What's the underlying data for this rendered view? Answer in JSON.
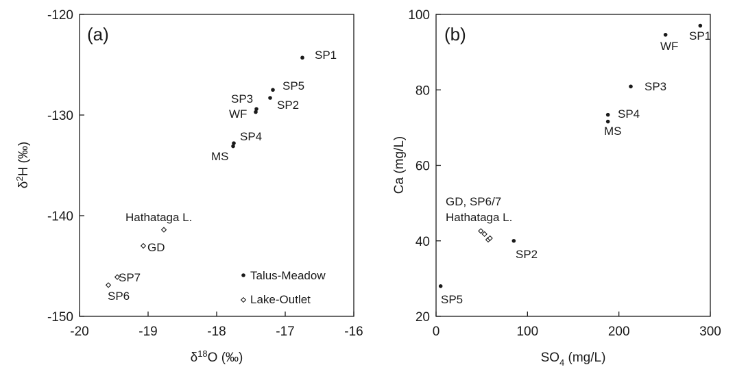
{
  "chart_data": [
    {
      "type": "scatter",
      "panel_label": "(a)",
      "xlabel": "δ18O (‰)",
      "ylabel": "δ2H (‰)",
      "xlim": [
        -20,
        -16
      ],
      "ylim": [
        -150,
        -120
      ],
      "x_ticks": [
        -20,
        -19,
        -18,
        -17,
        -16
      ],
      "y_ticks": [
        -150,
        -140,
        -130,
        -120
      ],
      "x_tick_labels": [
        "-20",
        "-19",
        "-18",
        "-17",
        "-16"
      ],
      "y_tick_labels": [
        "-150",
        "-140",
        "-130",
        "-120"
      ],
      "legend_position": "bottom-right",
      "legend": [
        "Talus-Meadow",
        "Lake-Outlet"
      ],
      "series": [
        {
          "name": "Talus-Meadow",
          "marker": "filled-circle",
          "points": [
            {
              "label": "SP1",
              "x": -16.75,
              "y": -124.3
            },
            {
              "label": "SP5",
              "x": -17.18,
              "y": -127.5
            },
            {
              "label": "SP2",
              "x": -17.22,
              "y": -128.3
            },
            {
              "label": "SP3",
              "x": -17.42,
              "y": -129.4
            },
            {
              "label": "WF",
              "x": -17.43,
              "y": -129.7
            },
            {
              "label": "SP4",
              "x": -17.75,
              "y": -132.8
            },
            {
              "label": "MS",
              "x": -17.76,
              "y": -133.1
            }
          ]
        },
        {
          "name": "Lake-Outlet",
          "marker": "open-diamond",
          "points": [
            {
              "label": "Hathataga L.",
              "x": -18.77,
              "y": -141.4
            },
            {
              "label": "GD",
              "x": -19.07,
              "y": -143.0
            },
            {
              "label": "SP7",
              "x": -19.45,
              "y": -146.1
            },
            {
              "label": "SP6",
              "x": -19.58,
              "y": -146.9
            }
          ]
        }
      ],
      "annotations": [
        "SP1",
        "SP5",
        "SP3",
        "SP2",
        "WF",
        "SP4",
        "MS",
        "Hathataga L.",
        "GD",
        "SP7",
        "SP6"
      ]
    },
    {
      "type": "scatter",
      "panel_label": "(b)",
      "xlabel": "SO4 (mg/L)",
      "ylabel": "Ca (mg/L)",
      "xlim": [
        0,
        300
      ],
      "ylim": [
        20,
        100
      ],
      "x_ticks": [
        0,
        100,
        200,
        300
      ],
      "y_ticks": [
        20,
        40,
        60,
        80,
        100
      ],
      "x_tick_labels": [
        "0",
        "100",
        "200",
        "300"
      ],
      "y_tick_labels": [
        "20",
        "40",
        "60",
        "80",
        "100"
      ],
      "series": [
        {
          "name": "Talus-Meadow",
          "marker": "filled-circle",
          "points": [
            {
              "label": "SP1",
              "x": 289,
              "y": 97
            },
            {
              "label": "WF",
              "x": 251,
              "y": 94.6
            },
            {
              "label": "SP3",
              "x": 213,
              "y": 80.9
            },
            {
              "label": "SP4",
              "x": 188,
              "y": 73.4
            },
            {
              "label": "MS",
              "x": 188,
              "y": 71.6
            },
            {
              "label": "SP2",
              "x": 85,
              "y": 40
            },
            {
              "label": "SP5",
              "x": 5,
              "y": 28
            }
          ]
        },
        {
          "name": "Lake-Outlet",
          "marker": "open-diamond",
          "points": [
            {
              "x": 49,
              "y": 42.6
            },
            {
              "x": 53,
              "y": 41.8
            },
            {
              "x": 57,
              "y": 40.3
            },
            {
              "x": 59,
              "y": 40.7
            }
          ]
        }
      ],
      "annotations": [
        "SP1",
        "WF",
        "SP3",
        "SP4",
        "MS",
        "SP2",
        "SP5",
        "GD, SP6/7",
        "Hathataga L."
      ]
    }
  ]
}
